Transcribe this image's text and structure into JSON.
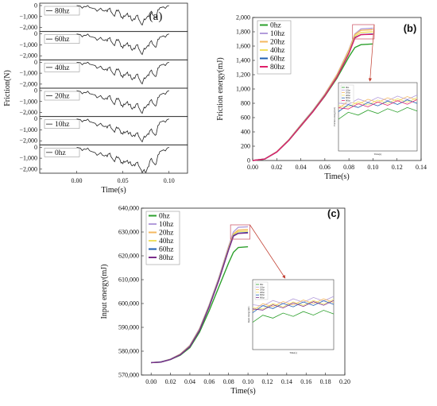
{
  "chart_data": [
    {
      "panel_label": "(a)",
      "type": "line",
      "xlabel": "Time(s)",
      "ylabel": "Friction(N)",
      "xlim": [
        -0.04,
        0.12
      ],
      "x_ticks": [
        "0.00",
        "0.05",
        "0.10"
      ],
      "y_tick_labels": [
        "0",
        "−1,000",
        "−2,000"
      ],
      "subplots": [
        {
          "name": "80hz",
          "ylim": [
            -2300,
            0
          ],
          "x": [
            0.0,
            0.01,
            0.02,
            0.03,
            0.035,
            0.04,
            0.045,
            0.05,
            0.055,
            0.06,
            0.065,
            0.07,
            0.075,
            0.08,
            0.085,
            0.09,
            0.1
          ],
          "values": [
            0,
            -100,
            -300,
            -500,
            -300,
            -900,
            -400,
            -1200,
            -700,
            -1400,
            -900,
            -1700,
            -1200,
            -600,
            -1100,
            -200,
            0
          ]
        },
        {
          "name": "60hz",
          "ylim": [
            -2300,
            0
          ],
          "x": [
            0.0,
            0.01,
            0.02,
            0.03,
            0.035,
            0.04,
            0.045,
            0.05,
            0.055,
            0.06,
            0.065,
            0.07,
            0.075,
            0.08,
            0.085,
            0.09,
            0.1
          ],
          "values": [
            0,
            -150,
            -350,
            -600,
            -400,
            -1000,
            -500,
            -1300,
            -800,
            -1500,
            -1000,
            -1800,
            -1300,
            -700,
            -1200,
            -300,
            0
          ]
        },
        {
          "name": "40hz",
          "ylim": [
            -2300,
            0
          ],
          "x": [
            0.0,
            0.01,
            0.02,
            0.03,
            0.035,
            0.04,
            0.045,
            0.05,
            0.055,
            0.06,
            0.065,
            0.07,
            0.075,
            0.08,
            0.085,
            0.09,
            0.1
          ],
          "values": [
            0,
            -100,
            -300,
            -700,
            -500,
            -1100,
            -600,
            -1400,
            -900,
            -1600,
            -1100,
            -1900,
            -1400,
            -800,
            -1300,
            -300,
            0
          ]
        },
        {
          "name": "20hz",
          "ylim": [
            -2300,
            0
          ],
          "x": [
            0.0,
            0.01,
            0.02,
            0.03,
            0.035,
            0.04,
            0.045,
            0.05,
            0.055,
            0.06,
            0.065,
            0.07,
            0.075,
            0.08,
            0.085,
            0.09,
            0.1
          ],
          "values": [
            0,
            -200,
            -400,
            -800,
            -500,
            -1200,
            -700,
            -1500,
            -1000,
            -1700,
            -1200,
            -2000,
            -1500,
            -900,
            -1400,
            -400,
            0
          ]
        },
        {
          "name": "10hz",
          "ylim": [
            -2300,
            0
          ],
          "x": [
            0.0,
            0.01,
            0.02,
            0.03,
            0.035,
            0.04,
            0.045,
            0.05,
            0.055,
            0.06,
            0.065,
            0.07,
            0.075,
            0.08,
            0.085,
            0.09,
            0.1
          ],
          "values": [
            0,
            -150,
            -400,
            -700,
            -600,
            -1100,
            -800,
            -1400,
            -1100,
            -1600,
            -1300,
            -2000,
            -1600,
            -1000,
            -1500,
            -300,
            0
          ]
        },
        {
          "name": "0hz",
          "ylim": [
            -2300,
            0
          ],
          "x": [
            0.0,
            0.01,
            0.02,
            0.03,
            0.035,
            0.04,
            0.045,
            0.05,
            0.055,
            0.06,
            0.065,
            0.07,
            0.075,
            0.08,
            0.085,
            0.09,
            0.1
          ],
          "values": [
            0,
            -200,
            -500,
            -800,
            -600,
            -1200,
            -900,
            -1500,
            -1200,
            -1700,
            -1400,
            -2100,
            -2300,
            -1100,
            -1600,
            -400,
            0
          ]
        }
      ]
    },
    {
      "panel_label": "(b)",
      "type": "line",
      "xlabel": "Time(s)",
      "ylabel": "Friction energy(mJ)",
      "xlim": [
        0,
        0.14
      ],
      "ylim": [
        0,
        2000
      ],
      "x_ticks": [
        "0.00",
        "0.02",
        "0.04",
        "0.06",
        "0.08",
        "0.10",
        "0.12",
        "0.14"
      ],
      "y_ticks": [
        "0",
        "200",
        "400",
        "600",
        "800",
        "1,000",
        "1,200",
        "1,400",
        "1,600",
        "1,800",
        "2,000"
      ],
      "legend_position": "top-left",
      "inset": {
        "xlabel": "Time(s)",
        "ylabel": "Friction energy(mJ)",
        "legend": [
          "0hz",
          "10hz",
          "20hz",
          "40hz",
          "60hz",
          "80hz"
        ]
      },
      "x": [
        0.0,
        0.01,
        0.02,
        0.03,
        0.04,
        0.05,
        0.06,
        0.07,
        0.08,
        0.085,
        0.09,
        0.1
      ],
      "series": [
        {
          "name": "0hz",
          "color": "#2ca02c",
          "values": [
            0,
            20,
            120,
            280,
            480,
            680,
            900,
            1150,
            1450,
            1580,
            1620,
            1630
          ]
        },
        {
          "name": "10hz",
          "color": "#b39ddb",
          "values": [
            0,
            22,
            125,
            290,
            500,
            700,
            930,
            1200,
            1550,
            1770,
            1840,
            1850
          ]
        },
        {
          "name": "20hz",
          "color": "#f4b860",
          "values": [
            0,
            21,
            122,
            288,
            495,
            695,
            925,
            1195,
            1540,
            1760,
            1820,
            1830
          ]
        },
        {
          "name": "40hz",
          "color": "#f0e060",
          "values": [
            0,
            20,
            120,
            285,
            490,
            690,
            915,
            1180,
            1520,
            1740,
            1790,
            1800
          ]
        },
        {
          "name": "60hz",
          "color": "#1f5fb0",
          "values": [
            0,
            20,
            118,
            282,
            485,
            685,
            910,
            1170,
            1500,
            1720,
            1760,
            1770
          ]
        },
        {
          "name": "80hz",
          "color": "#e0206a",
          "values": [
            0,
            20,
            118,
            280,
            482,
            680,
            905,
            1165,
            1495,
            1715,
            1760,
            1765
          ]
        }
      ]
    },
    {
      "panel_label": "(c)",
      "type": "line",
      "xlabel": "Time(s)",
      "ylabel": "Input energy(mJ)",
      "xlim": [
        -0.01,
        0.2
      ],
      "ylim": [
        570000,
        640000
      ],
      "x_ticks": [
        "0.00",
        "0.02",
        "0.04",
        "0.06",
        "0.08",
        "0.10",
        "0.12",
        "0.14",
        "0.16",
        "0.18",
        "0.20"
      ],
      "y_ticks": [
        "570,000",
        "580,000",
        "590,000",
        "600,000",
        "610,000",
        "620,000",
        "630,000",
        "640,000"
      ],
      "legend_position": "top-left",
      "inset": {
        "xlabel": "Time(s)",
        "ylabel": "Input energy(mJ)",
        "legend": [
          "0hz",
          "10hz",
          "20hz",
          "40hz",
          "60hz",
          "80hz"
        ]
      },
      "x": [
        0.0,
        0.01,
        0.02,
        0.03,
        0.04,
        0.05,
        0.06,
        0.07,
        0.08,
        0.085,
        0.09,
        0.1
      ],
      "series": [
        {
          "name": "0hz",
          "color": "#2ca02c",
          "values": [
            575200,
            575400,
            576500,
            578300,
            581500,
            588000,
            597000,
            607000,
            617000,
            621500,
            623500,
            623800
          ]
        },
        {
          "name": "10hz",
          "color": "#b39ddb",
          "values": [
            575200,
            575500,
            576700,
            578800,
            582500,
            589500,
            599500,
            611000,
            624000,
            630000,
            632000,
            632200
          ]
        },
        {
          "name": "20hz",
          "color": "#f4b860",
          "values": [
            575200,
            575500,
            576600,
            578700,
            582300,
            589200,
            599200,
            610500,
            623500,
            629200,
            630800,
            631000
          ]
        },
        {
          "name": "40hz",
          "color": "#f0e060",
          "values": [
            575200,
            575450,
            576600,
            578600,
            582100,
            589000,
            599000,
            610200,
            623000,
            628800,
            630200,
            630300
          ]
        },
        {
          "name": "60hz",
          "color": "#1f5fb0",
          "values": [
            575200,
            575450,
            576550,
            578500,
            582000,
            588800,
            598800,
            610000,
            622700,
            628500,
            629500,
            629800
          ]
        },
        {
          "name": "80hz",
          "color": "#7b2d8b",
          "values": [
            575200,
            575400,
            576500,
            578500,
            581900,
            588700,
            598600,
            609800,
            622500,
            628300,
            629400,
            629600
          ]
        }
      ]
    }
  ]
}
